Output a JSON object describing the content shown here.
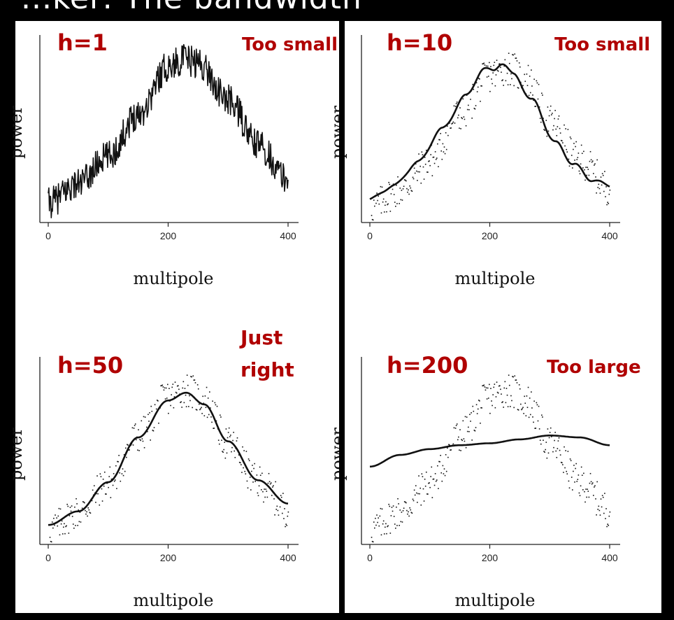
{
  "header": {
    "title_fragment": "...ker: The bandwidth"
  },
  "colors": {
    "annotation": "#b00000",
    "curve": "#111111",
    "points": "#111111"
  },
  "chart_data": [
    {
      "type": "line",
      "bandwidth_label": "h=1",
      "verdict": "Too small",
      "xlabel": "multipole",
      "ylabel": "power",
      "xlim": [
        0,
        400
      ],
      "xticks": [
        "0",
        "200",
        "400"
      ],
      "show_points": false,
      "curve_style": "jagged",
      "curve": {
        "x": [
          0,
          50,
          100,
          150,
          200,
          225,
          250,
          300,
          350,
          400
        ],
        "y": [
          0.1,
          0.2,
          0.34,
          0.56,
          0.8,
          0.84,
          0.82,
          0.63,
          0.4,
          0.22
        ]
      }
    },
    {
      "type": "line",
      "bandwidth_label": "h=10",
      "verdict": "Too small",
      "xlabel": "multipole",
      "ylabel": "power",
      "xlim": [
        0,
        400
      ],
      "xticks": [
        "0",
        "200",
        "400"
      ],
      "show_points": true,
      "curve_style": "wiggly",
      "curve": {
        "x": [
          0,
          40,
          80,
          120,
          160,
          190,
          205,
          220,
          240,
          270,
          310,
          340,
          370,
          400
        ],
        "y": [
          0.12,
          0.19,
          0.31,
          0.48,
          0.65,
          0.79,
          0.78,
          0.82,
          0.76,
          0.63,
          0.41,
          0.3,
          0.22,
          0.19
        ]
      }
    },
    {
      "type": "line",
      "bandwidth_label": "h=50",
      "verdict": [
        "Just",
        "right"
      ],
      "xlabel": "multipole",
      "ylabel": "power",
      "xlim": [
        0,
        400
      ],
      "xticks": [
        "0",
        "200",
        "400"
      ],
      "show_points": true,
      "curve_style": "smooth",
      "curve": {
        "x": [
          0,
          50,
          100,
          150,
          200,
          230,
          260,
          300,
          350,
          400
        ],
        "y": [
          0.1,
          0.17,
          0.32,
          0.55,
          0.74,
          0.78,
          0.72,
          0.53,
          0.33,
          0.21
        ]
      }
    },
    {
      "type": "line",
      "bandwidth_label": "h=200",
      "verdict": "Too large",
      "xlabel": "multipole",
      "ylabel": "power",
      "xlim": [
        0,
        400
      ],
      "xticks": [
        "0",
        "200",
        "400"
      ],
      "show_points": true,
      "curve_style": "smooth",
      "curve": {
        "x": [
          0,
          50,
          100,
          150,
          200,
          250,
          300,
          350,
          400
        ],
        "y": [
          0.4,
          0.46,
          0.49,
          0.51,
          0.52,
          0.54,
          0.56,
          0.55,
          0.51
        ]
      }
    }
  ]
}
